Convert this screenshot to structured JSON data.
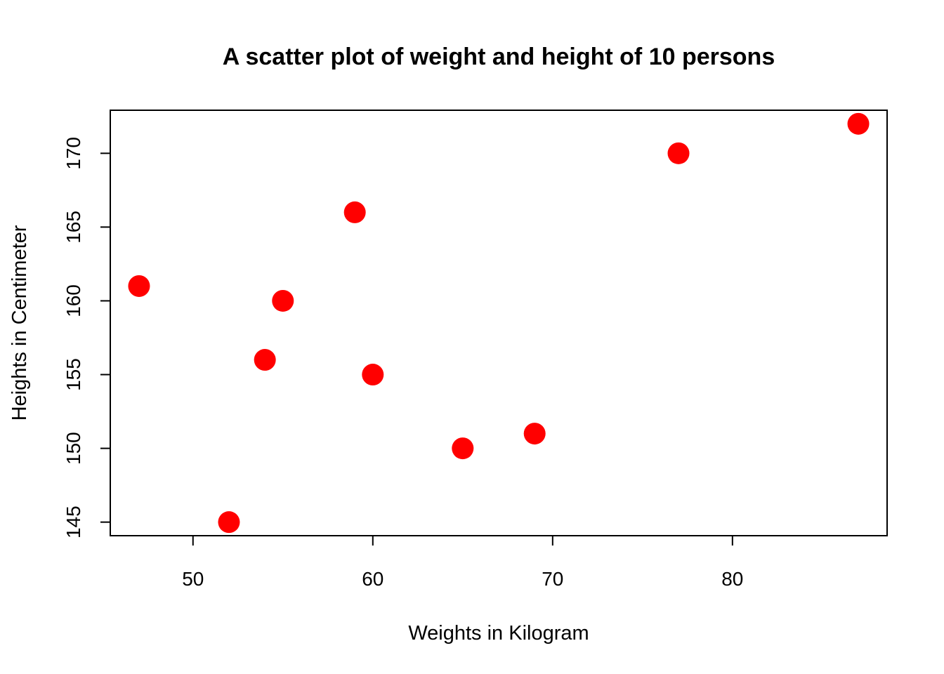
{
  "chart_data": {
    "type": "scatter",
    "title": "A scatter plot of weight and height of 10 persons",
    "xlabel": "Weights in Kilogram",
    "ylabel": "Heights in Centimeter",
    "xlim": [
      45.4,
      88.6
    ],
    "ylim": [
      144.08,
      172.92
    ],
    "xticks": [
      50,
      60,
      70,
      80
    ],
    "yticks": [
      145,
      150,
      155,
      160,
      165,
      170
    ],
    "grid": false,
    "legend": "none",
    "point_color": "#ff0000",
    "points": [
      {
        "x": 47,
        "y": 161
      },
      {
        "x": 52,
        "y": 145
      },
      {
        "x": 54,
        "y": 156
      },
      {
        "x": 55,
        "y": 160
      },
      {
        "x": 59,
        "y": 166
      },
      {
        "x": 60,
        "y": 155
      },
      {
        "x": 65,
        "y": 150
      },
      {
        "x": 69,
        "y": 151
      },
      {
        "x": 77,
        "y": 170
      },
      {
        "x": 87,
        "y": 172
      }
    ]
  }
}
